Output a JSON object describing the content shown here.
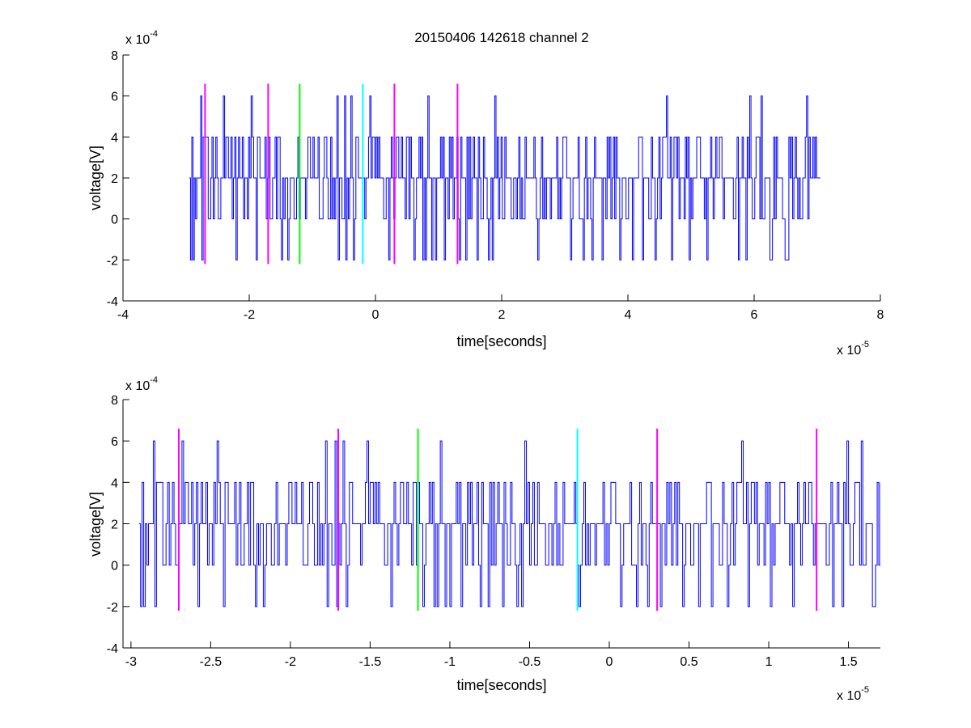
{
  "chart_data": [
    {
      "type": "line",
      "title": "20150406 142618 channel 2",
      "xlabel": "time[seconds]",
      "ylabel": "voltage[V]",
      "xlim": [
        -4,
        8
      ],
      "ylim": [
        -4,
        8
      ],
      "x_multiplier": {
        "base": "x 10",
        "exponent": "-5"
      },
      "y_multiplier": {
        "base": "x 10",
        "exponent": "-4"
      },
      "xticks": [
        "-4",
        "-2",
        "0",
        "2",
        "4",
        "6",
        "8"
      ],
      "yticks": [
        "-4",
        "-2",
        "0",
        "2",
        "4",
        "6",
        "8"
      ],
      "series": [
        {
          "color": "#0000ff",
          "x_range": [
            -2.95,
            7.05
          ],
          "levels": [
            -2,
            0,
            2,
            4,
            6
          ],
          "seed": 7,
          "x": [],
          "y": []
        }
      ],
      "markers": [
        {
          "x": -2.7,
          "ymin": -2.2,
          "ymax": 6.6,
          "color": "#ff00ff"
        },
        {
          "x": -1.7,
          "ymin": -2.2,
          "ymax": 6.6,
          "color": "#ff00ff"
        },
        {
          "x": -1.2,
          "ymin": -2.2,
          "ymax": 6.6,
          "color": "#00ff00"
        },
        {
          "x": -0.2,
          "ymin": -2.2,
          "ymax": 6.6,
          "color": "#00ffff"
        },
        {
          "x": 0.3,
          "ymin": -2.2,
          "ymax": 6.6,
          "color": "#ff00ff"
        },
        {
          "x": 1.3,
          "ymin": -2.2,
          "ymax": 6.6,
          "color": "#ff00ff"
        }
      ],
      "grid": false,
      "legend": "none"
    },
    {
      "type": "line",
      "title": "",
      "xlabel": "time[seconds]",
      "ylabel": "voltage[V]",
      "xlim": [
        -3.05,
        1.7
      ],
      "ylim": [
        -4,
        8
      ],
      "x_multiplier": {
        "base": "x 10",
        "exponent": "-5"
      },
      "y_multiplier": {
        "base": "x 10",
        "exponent": "-4"
      },
      "xticks": [
        "-3",
        "-2.5",
        "-2",
        "-1.5",
        "-1",
        "-0.5",
        "0",
        "0.5",
        "1",
        "1.5"
      ],
      "yticks": [
        "-4",
        "-2",
        "0",
        "2",
        "4",
        "6",
        "8"
      ],
      "series": [
        {
          "color": "#0000ff",
          "x_range": [
            -2.95,
            1.7
          ],
          "levels": [
            -2,
            0,
            2,
            4,
            6
          ],
          "seed": 7,
          "x": [],
          "y": []
        }
      ],
      "markers": [
        {
          "x": -2.7,
          "ymin": -2.2,
          "ymax": 6.6,
          "color": "#ff00ff"
        },
        {
          "x": -1.7,
          "ymin": -2.2,
          "ymax": 6.6,
          "color": "#ff00ff"
        },
        {
          "x": -1.2,
          "ymin": -2.2,
          "ymax": 6.6,
          "color": "#00ff00"
        },
        {
          "x": -0.2,
          "ymin": -2.2,
          "ymax": 6.6,
          "color": "#00ffff"
        },
        {
          "x": 0.3,
          "ymin": -2.2,
          "ymax": 6.6,
          "color": "#ff00ff"
        },
        {
          "x": 1.3,
          "ymin": -2.2,
          "ymax": 6.6,
          "color": "#ff00ff"
        }
      ],
      "grid": false,
      "legend": "none"
    }
  ]
}
